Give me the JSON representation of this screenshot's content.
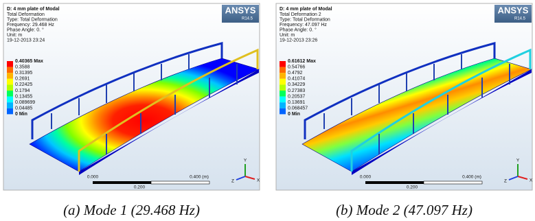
{
  "panels": [
    {
      "header": {
        "title": "D: 4 mm plate of Modal",
        "lines": [
          "Total Deformation",
          "Type: Total Deformation",
          "Frequency: 29.468 Hz",
          "Phase Angle: 0. °",
          "Unit: m",
          "19-12-2013 23:24"
        ]
      },
      "logo": {
        "name": "ANSYS",
        "version": "R14.5"
      },
      "legend": [
        "0.40365 Max",
        "0.3588",
        "0.31395",
        "0.2691",
        "0.22425",
        "0.1794",
        "0.13455",
        "0.089699",
        "0.04485",
        "0 Min"
      ],
      "scale": {
        "start": "0.000",
        "end": "0.400 (m)",
        "mid": "0.200"
      },
      "axes": {
        "x": "X",
        "y": "Y",
        "z": "Z"
      },
      "caption": "(a) Mode 1 (29.468 Hz)"
    },
    {
      "header": {
        "title": "D: 4 mm plate of Modal",
        "lines": [
          "Total Deformation 2",
          "Type: Total Deformation",
          "Frequency: 47.097 Hz",
          "Phase Angle: 0. °",
          "Unit: m",
          "19-12-2013 23:26"
        ]
      },
      "logo": {
        "name": "ANSYS",
        "version": "R14.5"
      },
      "legend": [
        "0.61612 Max",
        "0.54766",
        "0.4792",
        "0.41074",
        "0.34229",
        "0.27383",
        "0.20537",
        "0.13691",
        "0.068457",
        "0 Min"
      ],
      "scale": {
        "start": "0.000",
        "end": "0.400 (m)",
        "mid": "0.200"
      },
      "axes": {
        "x": "X",
        "y": "Y",
        "z": "Z"
      },
      "caption": "(b) Mode 2 (47.097 Hz)"
    }
  ]
}
